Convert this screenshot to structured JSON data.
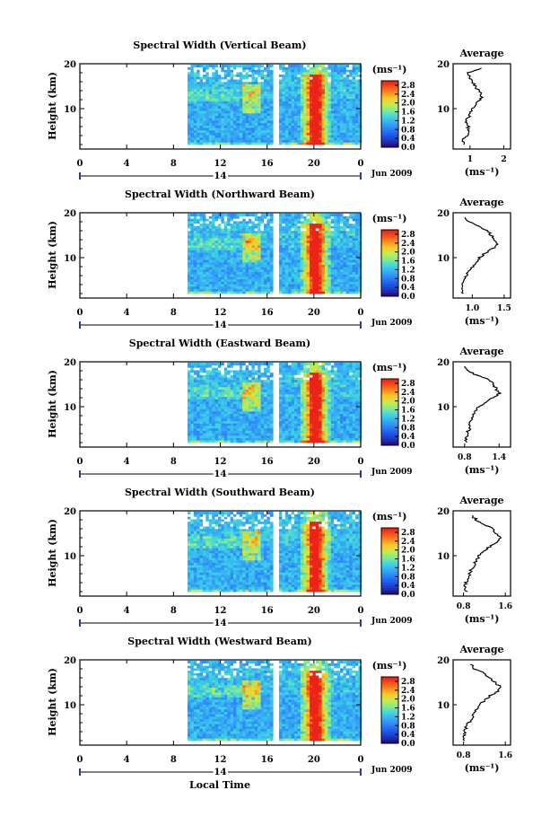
{
  "figure": {
    "x_axis_title": "Local Time",
    "heatmap_ticks": [
      "0",
      "4",
      "8",
      "12",
      "16",
      "20",
      "0"
    ],
    "date_label": "14",
    "month_label": "Jun 2009",
    "y_axis_title": "Height (km)",
    "y_ticks": [
      "20",
      "10"
    ],
    "unit_label": "(ms⁻¹)",
    "colorbar_ticks": [
      "2.8",
      "2.4",
      "2.0",
      "1.6",
      "1.2",
      "0.8",
      "0.4",
      "0.0"
    ],
    "profile_title": "Average",
    "profile_unit": "(ms⁻¹)"
  },
  "chart_data": [
    {
      "type": "heatmap",
      "title": "Spectral Width (Vertical Beam)",
      "xlabel": "Local Time",
      "ylabel": "Height (km)",
      "xlim": [
        0,
        24
      ],
      "ylim": [
        1,
        20
      ],
      "data_start_hour": 9.2,
      "gap_hours": [
        16.3,
        16.8
      ],
      "colorbar_range": [
        0.0,
        3.0
      ],
      "profile": {
        "title": "Average",
        "xticks": [
          "1",
          "2"
        ],
        "xlim": [
          0.5,
          2.2
        ],
        "heights": [
          2,
          3,
          4,
          5,
          6,
          7,
          8,
          9,
          10,
          11,
          12,
          13,
          14,
          15,
          16,
          17,
          18,
          19
        ],
        "values": [
          0.85,
          0.8,
          0.9,
          0.95,
          0.95,
          0.9,
          0.95,
          1.0,
          1.05,
          1.2,
          1.3,
          1.35,
          1.25,
          1.15,
          1.05,
          1.0,
          0.95,
          1.3
        ]
      }
    },
    {
      "type": "heatmap",
      "title": "Spectral Width (Northward Beam)",
      "xlabel": "Local Time",
      "ylabel": "Height (km)",
      "xlim": [
        0,
        24
      ],
      "ylim": [
        1,
        20
      ],
      "data_start_hour": 9.2,
      "gap_hours": [
        16.3,
        16.8
      ],
      "colorbar_range": [
        0.0,
        3.0
      ],
      "profile": {
        "title": "Average",
        "xticks": [
          "1.0",
          "1.5"
        ],
        "xlim": [
          0.7,
          1.6
        ],
        "heights": [
          2,
          3,
          4,
          5,
          6,
          7,
          8,
          9,
          10,
          11,
          12,
          13,
          14,
          15,
          16,
          17,
          18,
          19
        ],
        "values": [
          0.85,
          0.82,
          0.85,
          0.88,
          0.9,
          0.95,
          1.0,
          1.05,
          1.12,
          1.2,
          1.32,
          1.4,
          1.32,
          1.3,
          1.25,
          1.1,
          0.95,
          0.9
        ]
      }
    },
    {
      "type": "heatmap",
      "title": "Spectral Width (Eastward Beam)",
      "xlabel": "Local Time",
      "ylabel": "Height (km)",
      "xlim": [
        0,
        24
      ],
      "ylim": [
        1,
        20
      ],
      "data_start_hour": 9.2,
      "gap_hours": [
        16.3,
        16.8
      ],
      "colorbar_range": [
        0.0,
        3.0
      ],
      "profile": {
        "title": "Average",
        "xticks": [
          "0.8",
          "1.4"
        ],
        "xlim": [
          0.6,
          1.6
        ],
        "heights": [
          2,
          3,
          4,
          5,
          6,
          7,
          8,
          9,
          10,
          11,
          12,
          13,
          14,
          15,
          16,
          17,
          18,
          19
        ],
        "values": [
          0.85,
          0.82,
          0.85,
          0.88,
          0.9,
          0.92,
          0.95,
          1.0,
          1.05,
          1.15,
          1.3,
          1.4,
          1.35,
          1.3,
          1.25,
          1.0,
          0.85,
          0.8
        ]
      }
    },
    {
      "type": "heatmap",
      "title": "Spectral Width (Southward Beam)",
      "xlabel": "Local Time",
      "ylabel": "Height (km)",
      "xlim": [
        0,
        24
      ],
      "ylim": [
        1,
        20
      ],
      "data_start_hour": 9.2,
      "gap_hours": [
        16.3,
        16.8
      ],
      "colorbar_range": [
        0.0,
        3.0
      ],
      "profile": {
        "title": "Average",
        "xticks": [
          "0.8",
          "1.6"
        ],
        "xlim": [
          0.6,
          1.7
        ],
        "heights": [
          2,
          3,
          4,
          5,
          6,
          7,
          8,
          9,
          10,
          11,
          12,
          13,
          14,
          15,
          16,
          17,
          18,
          19
        ],
        "values": [
          0.85,
          0.82,
          0.85,
          0.9,
          0.92,
          0.95,
          1.0,
          1.05,
          1.1,
          1.2,
          1.3,
          1.45,
          1.5,
          1.4,
          1.35,
          1.2,
          1.05,
          0.95
        ]
      }
    },
    {
      "type": "heatmap",
      "title": "Spectral Width (Westward Beam)",
      "xlabel": "Local Time",
      "ylabel": "Height (km)",
      "xlim": [
        0,
        24
      ],
      "ylim": [
        1,
        20
      ],
      "data_start_hour": 9.2,
      "gap_hours": [
        16.3,
        16.8
      ],
      "colorbar_range": [
        0.0,
        3.0
      ],
      "profile": {
        "title": "Average",
        "xticks": [
          "0.8",
          "1.6"
        ],
        "xlim": [
          0.6,
          1.7
        ],
        "heights": [
          2,
          3,
          4,
          5,
          6,
          7,
          8,
          9,
          10,
          11,
          12,
          13,
          14,
          15,
          16,
          17,
          18,
          19
        ],
        "values": [
          0.82,
          0.8,
          0.82,
          0.85,
          0.9,
          0.95,
          1.0,
          1.05,
          1.1,
          1.2,
          1.3,
          1.45,
          1.5,
          1.4,
          1.3,
          1.2,
          1.0,
          0.95
        ]
      }
    }
  ]
}
